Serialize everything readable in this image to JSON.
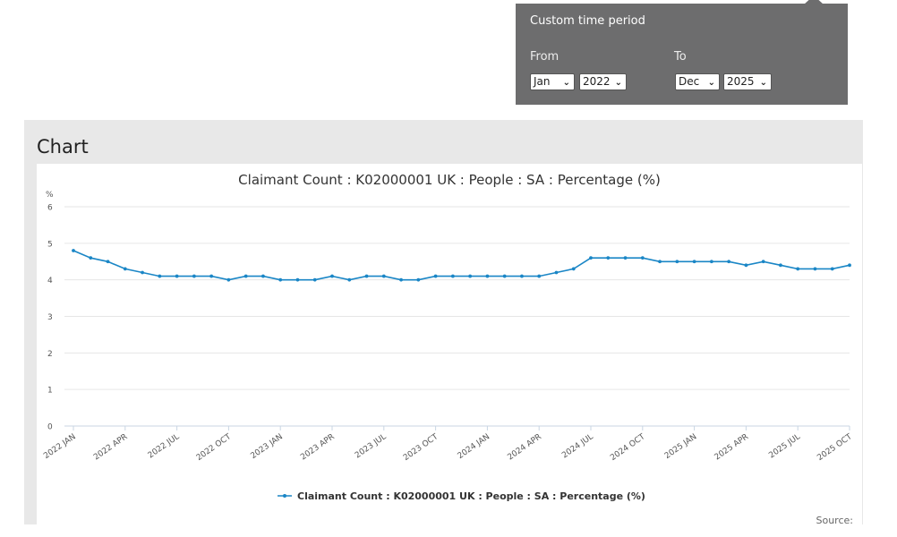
{
  "time_period": {
    "title": "Custom time period",
    "from_label": "From",
    "to_label": "To",
    "from_month": "Jan",
    "from_year": "2022",
    "to_month": "Dec",
    "to_year": "2025"
  },
  "panel": {
    "heading": "Chart",
    "source_label": "Source:"
  },
  "colors": {
    "series": "#1a86c6",
    "popup_bg": "#6d6d6e",
    "panel_bg": "#e8e8e8"
  },
  "chart_data": {
    "type": "line",
    "title": "Claimant Count : K02000001 UK : People : SA : Percentage (%)",
    "ylabel": "%",
    "xlabel": "",
    "ylim": [
      0,
      6
    ],
    "yticks": [
      0,
      1,
      2,
      3,
      4,
      5,
      6
    ],
    "grid": true,
    "legend_position": "bottom-center",
    "x": [
      "2022 JAN",
      "2022 FEB",
      "2022 MAR",
      "2022 APR",
      "2022 MAY",
      "2022 JUN",
      "2022 JUL",
      "2022 AUG",
      "2022 SEP",
      "2022 OCT",
      "2022 NOV",
      "2022 DEC",
      "2023 JAN",
      "2023 FEB",
      "2023 MAR",
      "2023 APR",
      "2023 MAY",
      "2023 JUN",
      "2023 JUL",
      "2023 AUG",
      "2023 SEP",
      "2023 OCT",
      "2023 NOV",
      "2023 DEC",
      "2024 JAN",
      "2024 FEB",
      "2024 MAR",
      "2024 APR",
      "2024 MAY",
      "2024 JUN",
      "2024 JUL",
      "2024 AUG",
      "2024 SEP",
      "2024 OCT",
      "2024 NOV",
      "2024 DEC",
      "2025 JAN",
      "2025 FEB",
      "2025 MAR",
      "2025 APR",
      "2025 MAY",
      "2025 JUN",
      "2025 JUL",
      "2025 AUG",
      "2025 SEP",
      "2025 OCT"
    ],
    "x_tick_labels": [
      "2022 JAN",
      "2022 APR",
      "2022 JUL",
      "2022 OCT",
      "2023 JAN",
      "2023 APR",
      "2023 JUL",
      "2023 OCT",
      "2024 JAN",
      "2024 APR",
      "2024 JUL",
      "2024 OCT",
      "2025 JAN",
      "2025 APR",
      "2025 JUL",
      "2025 OCT"
    ],
    "series": [
      {
        "name": "Claimant Count : K02000001 UK : People : SA : Percentage (%)",
        "values": [
          4.8,
          4.6,
          4.5,
          4.3,
          4.2,
          4.1,
          4.1,
          4.1,
          4.1,
          4.0,
          4.1,
          4.1,
          4.0,
          4.0,
          4.0,
          4.1,
          4.0,
          4.1,
          4.1,
          4.0,
          4.0,
          4.1,
          4.1,
          4.1,
          4.1,
          4.1,
          4.1,
          4.1,
          4.2,
          4.3,
          4.6,
          4.6,
          4.6,
          4.6,
          4.5,
          4.5,
          4.5,
          4.5,
          4.5,
          4.4,
          4.5,
          4.4,
          4.3,
          4.3,
          4.3,
          4.4
        ]
      }
    ]
  }
}
